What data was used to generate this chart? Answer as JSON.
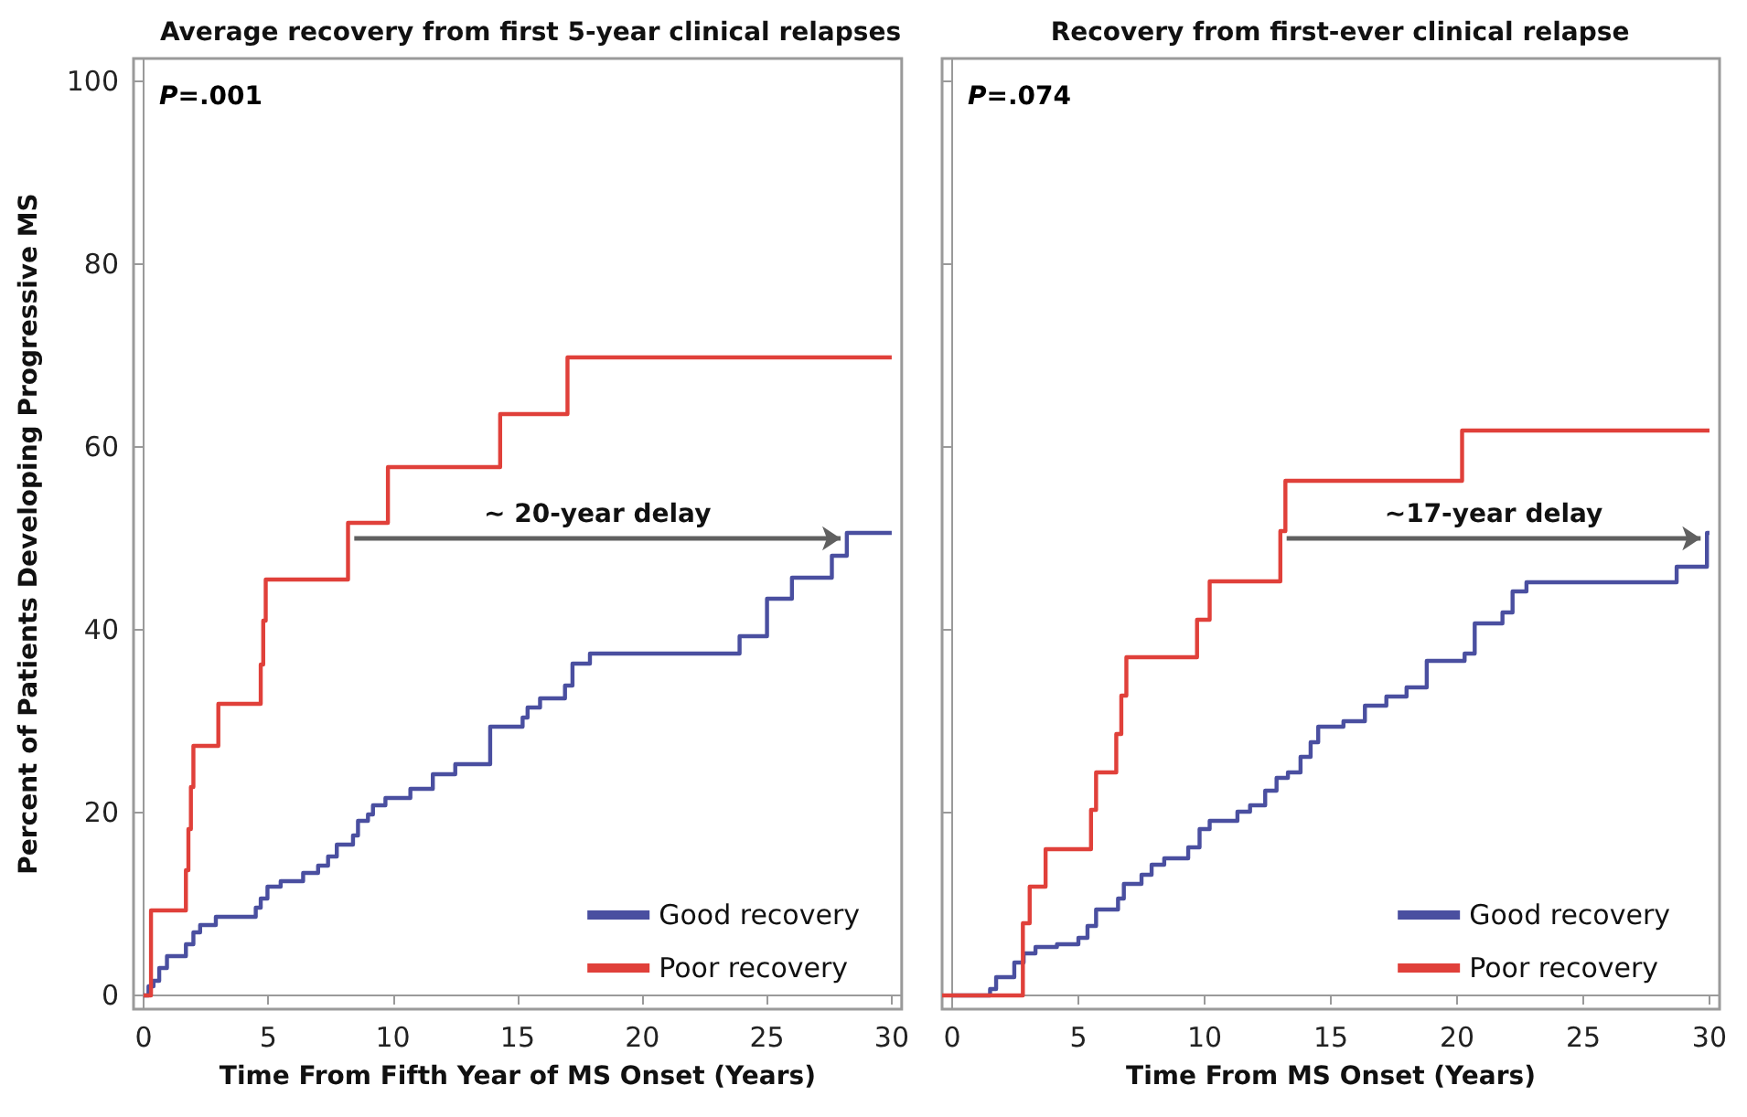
{
  "chart_data": [
    {
      "type": "step",
      "title": "Average recovery from first 5-year clinical relapses",
      "xlabel": "Time From Fifth Year of MS Onset (Years)",
      "ylabel": "Percent of Patients Developing Progressive MS",
      "xlim": [
        -0.4,
        30.4
      ],
      "xticks": [
        0,
        5,
        10,
        15,
        20,
        25,
        30
      ],
      "ylim": [
        -1.5,
        102.5
      ],
      "yticks": [
        0,
        20,
        40,
        60,
        80,
        100
      ],
      "legend": "bottom right",
      "annotations": [
        "P=.001",
        "~ 20-year delay"
      ],
      "series": [
        {
          "name": "Good recovery",
          "color": "#4a4fa0",
          "x": [
            0,
            0.2,
            0.4,
            0.63,
            0.94,
            1.7,
            2.0,
            2.27,
            2.9,
            4.5,
            4.7,
            4.97,
            5.5,
            6.4,
            7.0,
            7.4,
            7.75,
            8.4,
            8.6,
            9.0,
            9.2,
            9.7,
            10.7,
            11.6,
            12.5,
            13.9,
            15.2,
            15.4,
            15.9,
            16.9,
            17.2,
            17.9,
            23.9,
            25.0,
            26.0,
            27.6,
            28.2,
            30
          ],
          "values": [
            0,
            1,
            1.6,
            3,
            4.3,
            5.6,
            6.9,
            7.7,
            8.6,
            9.6,
            10.6,
            11.9,
            12.5,
            13.4,
            14.2,
            15.2,
            16.5,
            17.5,
            19.1,
            19.8,
            20.8,
            21.6,
            22.6,
            24.2,
            25.3,
            29.4,
            30.4,
            31.5,
            32.5,
            33.9,
            36.3,
            37.4,
            39.3,
            43.4,
            45.7,
            48.1,
            50.6,
            50.6
          ]
        },
        {
          "name": "Poor recovery",
          "color": "#e0403a",
          "x": [
            0,
            0.3,
            1.7,
            1.8,
            1.9,
            2.0,
            3.0,
            4.7,
            4.8,
            4.9,
            8.2,
            9.8,
            14.3,
            17.0,
            30
          ],
          "values": [
            0,
            9.3,
            13.7,
            18.2,
            22.8,
            27.3,
            31.9,
            36.2,
            41,
            45.5,
            51.7,
            57.8,
            63.6,
            69.8,
            69.8
          ]
        }
      ]
    },
    {
      "type": "step",
      "title": "Recovery from first-ever clinical relapse",
      "xlabel": "Time From MS Onset (Years)",
      "xlim": [
        -0.4,
        30.4
      ],
      "xticks": [
        0,
        5,
        10,
        15,
        20,
        25,
        30
      ],
      "ylim": [
        -1.5,
        102.5
      ],
      "yticks": [
        0,
        20,
        40,
        60,
        80,
        100
      ],
      "tick_labels": "x",
      "legend": "bottom right",
      "annotations": [
        "P=.074",
        "~17-year delay"
      ],
      "series": [
        {
          "name": "Good recovery",
          "color": "#4a4fa0",
          "x": [
            0,
            1.5,
            1.74,
            2.46,
            2.83,
            3.3,
            4.15,
            5.0,
            5.36,
            5.7,
            6.57,
            6.8,
            7.5,
            7.9,
            8.4,
            9.35,
            9.8,
            10.2,
            11.3,
            11.8,
            12.4,
            12.85,
            13.3,
            13.8,
            14.2,
            14.5,
            15.5,
            16.35,
            17.2,
            18.0,
            18.8,
            20.3,
            20.7,
            21.8,
            22.2,
            22.75,
            28.7,
            29.9,
            30
          ],
          "values": [
            0,
            0.7,
            2.0,
            3.6,
            4.6,
            5.3,
            5.6,
            6.3,
            7.6,
            9.4,
            10.6,
            12.2,
            13.2,
            14.3,
            15.0,
            16.2,
            18.2,
            19.1,
            20.1,
            20.8,
            22.4,
            23.8,
            24.4,
            26.1,
            27.7,
            29.4,
            30.0,
            31.7,
            32.7,
            33.7,
            36.6,
            37.4,
            40.7,
            41.9,
            44.2,
            45.2,
            46.9,
            50.6,
            50.6
          ]
        },
        {
          "name": "Poor recovery",
          "color": "#e0403a",
          "x": [
            -0.4,
            2.8,
            3.07,
            3.7,
            5.5,
            5.7,
            6.5,
            6.7,
            6.9,
            9.7,
            10.2,
            13.0,
            13.2,
            20.2,
            30
          ],
          "values": [
            0,
            7.9,
            11.9,
            16.0,
            20.3,
            24.4,
            28.6,
            32.8,
            37.0,
            41.1,
            45.3,
            50.8,
            56.3,
            61.8,
            61.8
          ]
        }
      ]
    }
  ]
}
